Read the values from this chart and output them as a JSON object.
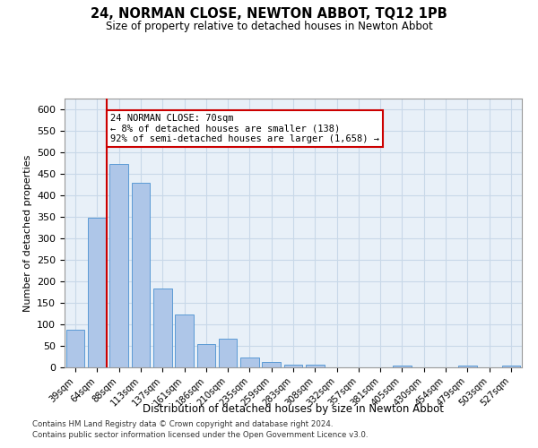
{
  "title": "24, NORMAN CLOSE, NEWTON ABBOT, TQ12 1PB",
  "subtitle": "Size of property relative to detached houses in Newton Abbot",
  "xlabel": "Distribution of detached houses by size in Newton Abbot",
  "ylabel": "Number of detached properties",
  "categories": [
    "39sqm",
    "64sqm",
    "88sqm",
    "113sqm",
    "137sqm",
    "161sqm",
    "186sqm",
    "210sqm",
    "235sqm",
    "259sqm",
    "283sqm",
    "308sqm",
    "332sqm",
    "357sqm",
    "381sqm",
    "405sqm",
    "430sqm",
    "454sqm",
    "479sqm",
    "503sqm",
    "527sqm"
  ],
  "values": [
    88,
    348,
    472,
    430,
    183,
    122,
    54,
    67,
    22,
    13,
    7,
    6,
    0,
    0,
    0,
    5,
    0,
    0,
    5,
    0,
    5
  ],
  "bar_color": "#aec6e8",
  "bar_edge_color": "#5b9bd5",
  "grid_color": "#c8d8e8",
  "background_color": "#e8f0f8",
  "property_line_x": 1.45,
  "property_line_color": "#cc0000",
  "annotation_text": "24 NORMAN CLOSE: 70sqm\n← 8% of detached houses are smaller (138)\n92% of semi-detached houses are larger (1,658) →",
  "annotation_box_color": "#cc0000",
  "ylim": [
    0,
    625
  ],
  "yticks": [
    0,
    50,
    100,
    150,
    200,
    250,
    300,
    350,
    400,
    450,
    500,
    550,
    600
  ],
  "footer_line1": "Contains HM Land Registry data © Crown copyright and database right 2024.",
  "footer_line2": "Contains public sector information licensed under the Open Government Licence v3.0."
}
